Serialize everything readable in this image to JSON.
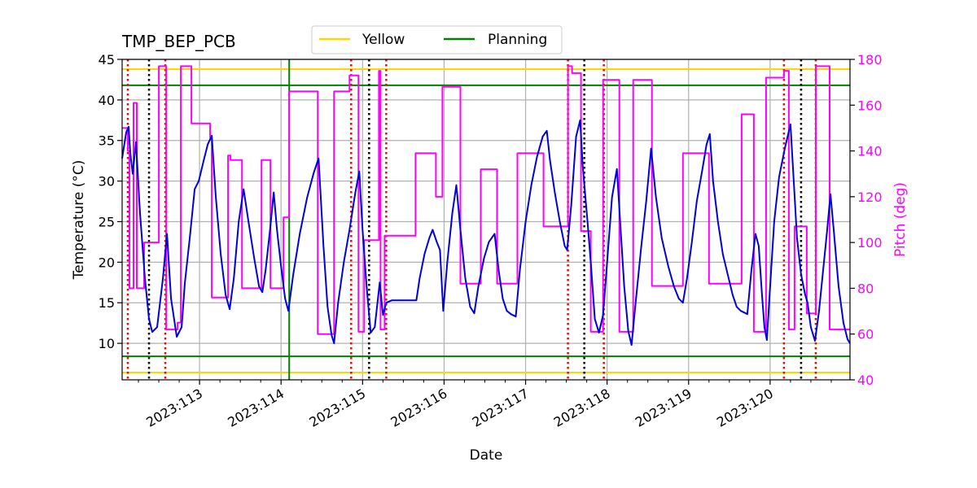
{
  "chart_data": {
    "type": "line",
    "title": "TMP_BEP_PCB",
    "xlabel": "Date",
    "ylabel": "Temperature ($^\\circ$C)",
    "ylabel_display": "Temperature (°C)",
    "y2label": "Pitch (deg)",
    "xlim": [
      112.05,
      120.98
    ],
    "ylim": [
      5.5,
      45
    ],
    "y2lim": [
      40,
      180
    ],
    "grid": true,
    "legend_position": "top-center",
    "x_ticks": [
      {
        "value": 113,
        "label": "2023:113"
      },
      {
        "value": 114,
        "label": "2023:114"
      },
      {
        "value": 115,
        "label": "2023:115"
      },
      {
        "value": 116,
        "label": "2023:116"
      },
      {
        "value": 117,
        "label": "2023:117"
      },
      {
        "value": 118,
        "label": "2023:118"
      },
      {
        "value": 119,
        "label": "2023:119"
      },
      {
        "value": 120,
        "label": "2023:120"
      }
    ],
    "y_ticks": [
      10,
      15,
      20,
      25,
      30,
      35,
      40,
      45
    ],
    "y2_ticks": [
      40,
      60,
      80,
      100,
      120,
      140,
      160,
      180
    ],
    "legend": [
      {
        "name": "Yellow",
        "color": "#ffd700"
      },
      {
        "name": "Planning",
        "color": "#008000"
      }
    ],
    "limit_lines": [
      {
        "name": "Yellow",
        "values": [
          43.8,
          6.4
        ],
        "color": "#ffd700"
      },
      {
        "name": "Planning",
        "values": [
          41.8,
          8.4
        ],
        "color": "#008000"
      }
    ],
    "planning_vline_x": 114.1,
    "red_dotted_x": [
      112.12,
      112.58,
      114.86,
      115.29,
      117.52,
      117.96,
      120.17,
      120.56
    ],
    "black_dotted_x": [
      112.38,
      115.08,
      117.72,
      120.38
    ],
    "series": [
      {
        "name": "Temperature",
        "axis": "left",
        "color": "#0000dd",
        "points": [
          [
            112.05,
            32.8
          ],
          [
            112.1,
            36.0
          ],
          [
            112.13,
            36.7
          ],
          [
            112.15,
            33.5
          ],
          [
            112.18,
            30.9
          ],
          [
            112.22,
            34.8
          ],
          [
            112.27,
            26.0
          ],
          [
            112.33,
            18.0
          ],
          [
            112.38,
            13.0
          ],
          [
            112.42,
            11.4
          ],
          [
            112.48,
            12.0
          ],
          [
            112.55,
            18.0
          ],
          [
            112.6,
            23.5
          ],
          [
            112.65,
            15.5
          ],
          [
            112.72,
            10.8
          ],
          [
            112.78,
            12.0
          ],
          [
            112.82,
            17.5
          ],
          [
            112.88,
            23.0
          ],
          [
            112.94,
            29.0
          ],
          [
            112.99,
            30.0
          ],
          [
            113.05,
            32.5
          ],
          [
            113.1,
            34.5
          ],
          [
            113.15,
            35.6
          ],
          [
            113.2,
            28.0
          ],
          [
            113.26,
            21.0
          ],
          [
            113.32,
            16.0
          ],
          [
            113.37,
            14.2
          ],
          [
            113.42,
            18.0
          ],
          [
            113.48,
            25.0
          ],
          [
            113.54,
            29.0
          ],
          [
            113.6,
            25.0
          ],
          [
            113.67,
            20.5
          ],
          [
            113.73,
            17.0
          ],
          [
            113.77,
            16.3
          ],
          [
            113.81,
            19.0
          ],
          [
            113.87,
            24.5
          ],
          [
            113.91,
            28.6
          ],
          [
            113.95,
            24.0
          ],
          [
            114.0,
            19.5
          ],
          [
            114.05,
            15.5
          ],
          [
            114.09,
            14.0
          ],
          [
            114.15,
            18.5
          ],
          [
            114.23,
            23.5
          ],
          [
            114.32,
            28.0
          ],
          [
            114.4,
            31.0
          ],
          [
            114.46,
            32.8
          ],
          [
            114.52,
            22.0
          ],
          [
            114.57,
            14.5
          ],
          [
            114.62,
            11.0
          ],
          [
            114.65,
            10.0
          ],
          [
            114.7,
            15.0
          ],
          [
            114.77,
            20.0
          ],
          [
            114.84,
            24.0
          ],
          [
            114.91,
            28.5
          ],
          [
            114.96,
            31.2
          ],
          [
            115.0,
            24.0
          ],
          [
            115.05,
            17.0
          ],
          [
            115.1,
            11.3
          ],
          [
            115.15,
            12.0
          ],
          [
            115.21,
            17.5
          ],
          [
            115.25,
            13.5
          ],
          [
            115.29,
            15.0
          ],
          [
            115.36,
            15.3
          ],
          [
            115.5,
            15.3
          ],
          [
            115.66,
            15.3
          ],
          [
            115.7,
            18.0
          ],
          [
            115.76,
            21.0
          ],
          [
            115.82,
            23.0
          ],
          [
            115.86,
            24.0
          ],
          [
            115.91,
            22.5
          ],
          [
            115.95,
            21.5
          ],
          [
            115.99,
            14.0
          ],
          [
            116.04,
            20.0
          ],
          [
            116.1,
            26.0
          ],
          [
            116.15,
            29.5
          ],
          [
            116.2,
            24.0
          ],
          [
            116.26,
            18.0
          ],
          [
            116.32,
            14.5
          ],
          [
            116.37,
            13.7
          ],
          [
            116.42,
            17.0
          ],
          [
            116.49,
            20.5
          ],
          [
            116.55,
            22.5
          ],
          [
            116.62,
            23.5
          ],
          [
            116.67,
            19.0
          ],
          [
            116.72,
            15.5
          ],
          [
            116.77,
            14.0
          ],
          [
            116.82,
            13.6
          ],
          [
            116.88,
            13.3
          ],
          [
            116.93,
            19.0
          ],
          [
            117.0,
            25.0
          ],
          [
            117.07,
            29.5
          ],
          [
            117.14,
            33.0
          ],
          [
            117.21,
            35.5
          ],
          [
            117.26,
            36.2
          ],
          [
            117.3,
            32.5
          ],
          [
            117.36,
            28.5
          ],
          [
            117.42,
            25.0
          ],
          [
            117.48,
            22.0
          ],
          [
            117.51,
            21.5
          ],
          [
            117.56,
            27.0
          ],
          [
            117.62,
            35.5
          ],
          [
            117.67,
            37.5
          ],
          [
            117.7,
            32.0
          ],
          [
            117.76,
            25.0
          ],
          [
            117.8,
            20.0
          ],
          [
            117.85,
            13.0
          ],
          [
            117.9,
            11.3
          ],
          [
            117.95,
            13.5
          ],
          [
            118.0,
            20.0
          ],
          [
            118.06,
            28.0
          ],
          [
            118.12,
            31.5
          ],
          [
            118.16,
            25.0
          ],
          [
            118.21,
            17.0
          ],
          [
            118.26,
            11.5
          ],
          [
            118.3,
            9.8
          ],
          [
            118.35,
            15.0
          ],
          [
            118.42,
            22.0
          ],
          [
            118.48,
            27.5
          ],
          [
            118.54,
            34.0
          ],
          [
            118.6,
            28.0
          ],
          [
            118.67,
            23.0
          ],
          [
            118.75,
            19.5
          ],
          [
            118.82,
            17.0
          ],
          [
            118.88,
            15.5
          ],
          [
            118.93,
            15.0
          ],
          [
            118.98,
            18.0
          ],
          [
            119.04,
            22.5
          ],
          [
            119.1,
            27.5
          ],
          [
            119.17,
            31.5
          ],
          [
            119.22,
            34.5
          ],
          [
            119.26,
            35.8
          ],
          [
            119.3,
            30.0
          ],
          [
            119.36,
            25.0
          ],
          [
            119.42,
            21.0
          ],
          [
            119.48,
            18.5
          ],
          [
            119.54,
            16.0
          ],
          [
            119.59,
            14.5
          ],
          [
            119.64,
            14.0
          ],
          [
            119.68,
            13.8
          ],
          [
            119.72,
            13.6
          ],
          [
            119.77,
            19.0
          ],
          [
            119.82,
            23.5
          ],
          [
            119.86,
            22.0
          ],
          [
            119.9,
            16.0
          ],
          [
            119.93,
            12.0
          ],
          [
            119.96,
            10.4
          ],
          [
            120.0,
            17.0
          ],
          [
            120.05,
            25.0
          ],
          [
            120.11,
            30.5
          ],
          [
            120.18,
            34.0
          ],
          [
            120.25,
            37.0
          ],
          [
            120.29,
            30.0
          ],
          [
            120.33,
            23.0
          ],
          [
            120.38,
            18.5
          ],
          [
            120.43,
            16.0
          ],
          [
            120.46,
            15.0
          ],
          [
            120.5,
            12.0
          ],
          [
            120.55,
            10.3
          ],
          [
            120.6,
            14.0
          ],
          [
            120.65,
            19.0
          ],
          [
            120.7,
            24.0
          ],
          [
            120.74,
            28.4
          ],
          [
            120.78,
            24.0
          ],
          [
            120.84,
            17.0
          ],
          [
            120.9,
            12.5
          ],
          [
            120.95,
            10.5
          ],
          [
            120.98,
            10.0
          ]
        ]
      },
      {
        "name": "Pitch",
        "axis": "right",
        "color": "#ff00ff",
        "points": [
          [
            112.05,
            150
          ],
          [
            112.12,
            150
          ],
          [
            112.12,
            140
          ],
          [
            112.14,
            140
          ],
          [
            112.14,
            80
          ],
          [
            112.19,
            80
          ],
          [
            112.19,
            161
          ],
          [
            112.23,
            161
          ],
          [
            112.23,
            80
          ],
          [
            112.32,
            80
          ],
          [
            112.32,
            100
          ],
          [
            112.5,
            100
          ],
          [
            112.5,
            177
          ],
          [
            112.59,
            177
          ],
          [
            112.59,
            62
          ],
          [
            112.73,
            62
          ],
          [
            112.73,
            65
          ],
          [
            112.77,
            65
          ],
          [
            112.77,
            177
          ],
          [
            112.9,
            177
          ],
          [
            112.9,
            152
          ],
          [
            113.13,
            152
          ],
          [
            113.13,
            146
          ],
          [
            113.15,
            146
          ],
          [
            113.15,
            76
          ],
          [
            113.35,
            76
          ],
          [
            113.35,
            138
          ],
          [
            113.38,
            138
          ],
          [
            113.38,
            136
          ],
          [
            113.52,
            136
          ],
          [
            113.52,
            80
          ],
          [
            113.76,
            80
          ],
          [
            113.76,
            136
          ],
          [
            113.87,
            136
          ],
          [
            113.87,
            80
          ],
          [
            114.03,
            80
          ],
          [
            114.03,
            111
          ],
          [
            114.1,
            111
          ],
          [
            114.1,
            166
          ],
          [
            114.45,
            166
          ],
          [
            114.45,
            60
          ],
          [
            114.65,
            60
          ],
          [
            114.65,
            166
          ],
          [
            114.84,
            166
          ],
          [
            114.84,
            173
          ],
          [
            114.95,
            173
          ],
          [
            114.95,
            61
          ],
          [
            115.02,
            61
          ],
          [
            115.02,
            101
          ],
          [
            115.2,
            101
          ],
          [
            115.2,
            175
          ],
          [
            115.22,
            175
          ],
          [
            115.22,
            62
          ],
          [
            115.27,
            62
          ],
          [
            115.27,
            103
          ],
          [
            115.65,
            103
          ],
          [
            115.65,
            139
          ],
          [
            115.9,
            139
          ],
          [
            115.9,
            120
          ],
          [
            115.98,
            120
          ],
          [
            115.98,
            168
          ],
          [
            116.2,
            168
          ],
          [
            116.2,
            82
          ],
          [
            116.45,
            82
          ],
          [
            116.45,
            132
          ],
          [
            116.65,
            132
          ],
          [
            116.65,
            82
          ],
          [
            116.9,
            82
          ],
          [
            116.9,
            139
          ],
          [
            117.22,
            139
          ],
          [
            117.22,
            107
          ],
          [
            117.52,
            107
          ],
          [
            117.52,
            177
          ],
          [
            117.57,
            177
          ],
          [
            117.57,
            174
          ],
          [
            117.68,
            174
          ],
          [
            117.68,
            105
          ],
          [
            117.8,
            105
          ],
          [
            117.8,
            61
          ],
          [
            117.95,
            61
          ],
          [
            117.95,
            171
          ],
          [
            118.15,
            171
          ],
          [
            118.15,
            61
          ],
          [
            118.32,
            61
          ],
          [
            118.32,
            171
          ],
          [
            118.55,
            171
          ],
          [
            118.55,
            81
          ],
          [
            118.93,
            81
          ],
          [
            118.93,
            139
          ],
          [
            119.25,
            139
          ],
          [
            119.25,
            82
          ],
          [
            119.65,
            82
          ],
          [
            119.65,
            156
          ],
          [
            119.8,
            156
          ],
          [
            119.8,
            61
          ],
          [
            119.95,
            61
          ],
          [
            119.95,
            172
          ],
          [
            120.17,
            172
          ],
          [
            120.17,
            175
          ],
          [
            120.23,
            175
          ],
          [
            120.23,
            62
          ],
          [
            120.3,
            62
          ],
          [
            120.3,
            107
          ],
          [
            120.45,
            107
          ],
          [
            120.45,
            69
          ],
          [
            120.56,
            69
          ],
          [
            120.56,
            177
          ],
          [
            120.73,
            177
          ],
          [
            120.73,
            62
          ],
          [
            120.98,
            62
          ]
        ]
      }
    ]
  }
}
